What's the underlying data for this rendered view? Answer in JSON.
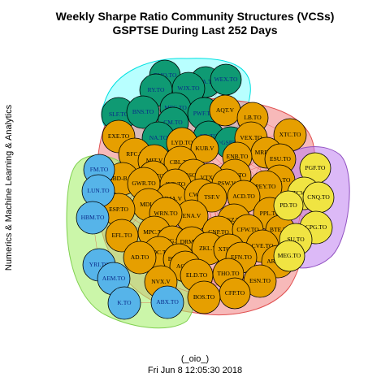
{
  "title_line1": "Weekly Sharpe Ratio Community Structures (VCSs)",
  "title_line2": "GSPTSE During Last 252 Days",
  "side_label": "Numerics & Machine Learning & Analytics",
  "footer_line1": "(_oio_)",
  "footer_line2": "Fri Jun  8 12:05:30 2018",
  "colors": {
    "green": "#0f9a73",
    "orange": "#e69f00",
    "blue": "#56b4e9",
    "yellow": "#f0e442",
    "label_dark": "#0a2a8a",
    "hull_cyan": "#00ffff",
    "hull_red": "#f08080",
    "hull_purple": "#c080f0",
    "hull_green": "#a8f070"
  },
  "nodes": [
    {
      "id": "BMO.TO",
      "g": "green"
    },
    {
      "id": "ATA.TO",
      "g": "green"
    },
    {
      "id": "WEX.TO",
      "g": "green"
    },
    {
      "id": "RY.TO",
      "g": "green"
    },
    {
      "id": "WJX.TO",
      "g": "green"
    },
    {
      "id": "SLF.TO",
      "g": "green"
    },
    {
      "id": "BNS.TO",
      "g": "green"
    },
    {
      "id": "MFC.TO",
      "g": "green"
    },
    {
      "id": "PWF.TO",
      "g": "green"
    },
    {
      "id": "CM.TO",
      "g": "green"
    },
    {
      "id": "NA.TO",
      "g": "green"
    },
    {
      "id": "TD.TO",
      "g": "green"
    },
    {
      "id": "^GSPTSE",
      "g": "green"
    },
    {
      "id": "AQT.V",
      "g": "orange"
    },
    {
      "id": "LB.TO",
      "g": "orange"
    },
    {
      "id": "EXE.TO",
      "g": "orange"
    },
    {
      "id": "LYD.TO",
      "g": "orange"
    },
    {
      "id": "VEX.TO",
      "g": "orange"
    },
    {
      "id": "XTC.TO",
      "g": "orange"
    },
    {
      "id": "KUB.V",
      "g": "orange"
    },
    {
      "id": "MRD.TO",
      "g": "orange"
    },
    {
      "id": "RFC.V",
      "g": "orange"
    },
    {
      "id": "ENB.TO",
      "g": "orange"
    },
    {
      "id": "ESU.TO",
      "g": "orange"
    },
    {
      "id": "MIT.V",
      "g": "orange"
    },
    {
      "id": "CBL.TO",
      "g": "orange"
    },
    {
      "id": "BBD-B.TO",
      "g": "orange"
    },
    {
      "id": "NPS.TO",
      "g": "orange"
    },
    {
      "id": "SSC.V",
      "g": "orange"
    },
    {
      "id": "MOZ.TO",
      "g": "orange"
    },
    {
      "id": "GWR.TO",
      "g": "orange"
    },
    {
      "id": "INE.TO",
      "g": "orange"
    },
    {
      "id": "VTX.V",
      "g": "orange"
    },
    {
      "id": "PSW.V",
      "g": "orange"
    },
    {
      "id": "ECA.TO",
      "g": "orange"
    },
    {
      "id": "PEY.TO",
      "g": "orange"
    },
    {
      "id": "MMA.V",
      "g": "orange"
    },
    {
      "id": "CWB.TO",
      "g": "orange"
    },
    {
      "id": "ACD.TO",
      "g": "orange"
    },
    {
      "id": "MDI.V",
      "g": "orange"
    },
    {
      "id": "ESP.TO",
      "g": "orange"
    },
    {
      "id": "TSF.V",
      "g": "orange"
    },
    {
      "id": "ENA.V",
      "g": "orange"
    },
    {
      "id": "WRN.TO",
      "g": "orange"
    },
    {
      "id": "PPL.TO",
      "g": "orange"
    },
    {
      "id": "FSZ.TO",
      "g": "orange"
    },
    {
      "id": "EFL.TO",
      "g": "orange"
    },
    {
      "id": "MPC.TO",
      "g": "orange"
    },
    {
      "id": "CNP.TO",
      "g": "orange"
    },
    {
      "id": "CFW.TO",
      "g": "orange"
    },
    {
      "id": "BTE.TO",
      "g": "orange"
    },
    {
      "id": "AKG.TO",
      "g": "orange"
    },
    {
      "id": "DRM.TO",
      "g": "orange"
    },
    {
      "id": "CVE.TO",
      "g": "orange"
    },
    {
      "id": "GDC.TO",
      "g": "orange"
    },
    {
      "id": "ZKL.V",
      "g": "orange"
    },
    {
      "id": "XTO.TO",
      "g": "orange"
    },
    {
      "id": "BTO.TO",
      "g": "orange"
    },
    {
      "id": "AD.TO",
      "g": "orange"
    },
    {
      "id": "EFN.TO",
      "g": "orange"
    },
    {
      "id": "AC.TO",
      "g": "orange"
    },
    {
      "id": "ARH.TO",
      "g": "orange"
    },
    {
      "id": "ELD.TO",
      "g": "orange"
    },
    {
      "id": "THO.TO",
      "g": "orange"
    },
    {
      "id": "NVX.V",
      "g": "orange"
    },
    {
      "id": "ESN.TO",
      "g": "orange"
    },
    {
      "id": "CFP.TO",
      "g": "orange"
    },
    {
      "id": "BOS.TO",
      "g": "orange"
    },
    {
      "id": "FM.TO",
      "g": "blue"
    },
    {
      "id": "LUN.TO",
      "g": "blue"
    },
    {
      "id": "HBM.TO",
      "g": "blue"
    },
    {
      "id": "YRI.TO",
      "g": "blue"
    },
    {
      "id": "AEM.TO",
      "g": "blue"
    },
    {
      "id": "K.TO",
      "g": "blue"
    },
    {
      "id": "ABX.TO",
      "g": "blue"
    },
    {
      "id": "PGF.TO",
      "g": "yellow"
    },
    {
      "id": "TCW.TO",
      "g": "yellow"
    },
    {
      "id": "CNQ.TO",
      "g": "yellow"
    },
    {
      "id": "PD.TO",
      "g": "yellow"
    },
    {
      "id": "CPG.TO",
      "g": "yellow"
    },
    {
      "id": "SU.TO",
      "g": "yellow"
    },
    {
      "id": "MEG.TO",
      "g": "yellow"
    }
  ]
}
